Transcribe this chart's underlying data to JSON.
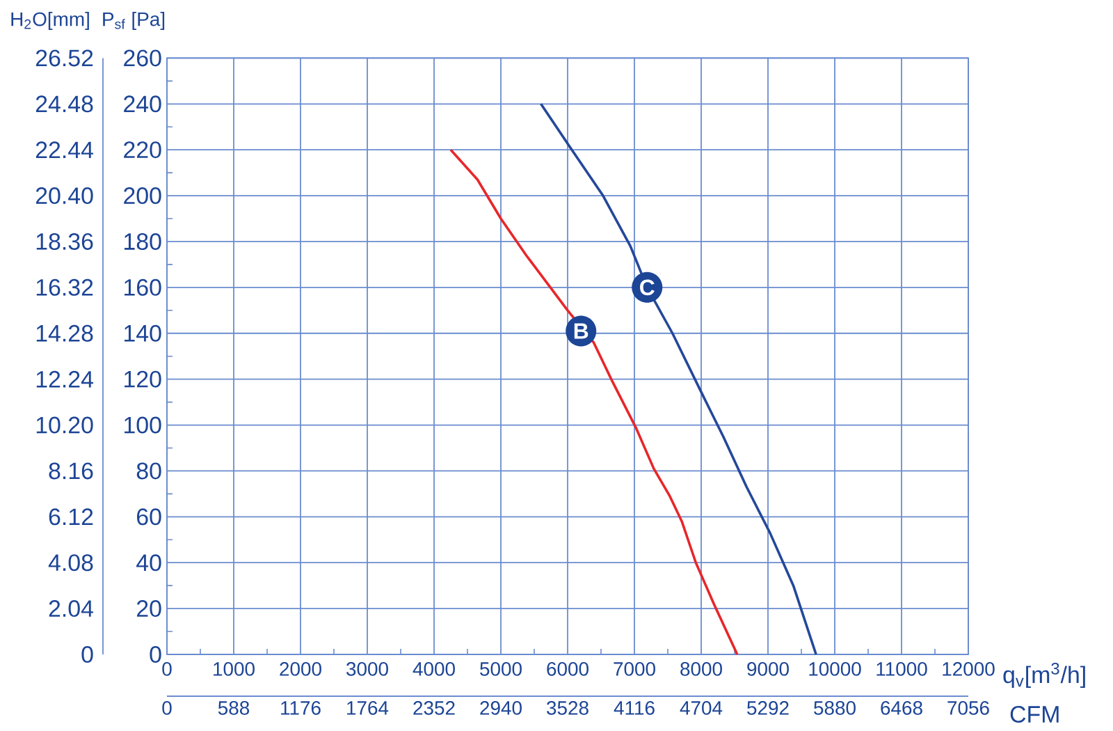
{
  "chart_data": {
    "type": "line",
    "xlabel": "q$_{v}$[m$^{3}$/h]",
    "x2label": "CFM",
    "ylabel": "P$_{sf}$ [Pa]",
    "y2label": "H$_{2}$O[mm]",
    "xlim": [
      0,
      12000
    ],
    "xticks": [
      0,
      1000,
      2000,
      3000,
      4000,
      5000,
      6000,
      7000,
      8000,
      9000,
      10000,
      11000,
      12000
    ],
    "x2lim": [
      0,
      7056
    ],
    "x2ticks": [
      0,
      588,
      1176,
      1764,
      2352,
      2940,
      3528,
      4116,
      4704,
      5292,
      5880,
      6468,
      7056
    ],
    "ylim": [
      0,
      260
    ],
    "yticks": [
      0,
      20,
      40,
      60,
      80,
      100,
      120,
      140,
      160,
      180,
      200,
      220,
      240,
      260
    ],
    "y2lim": [
      0,
      26.52
    ],
    "y2ticks": [
      0,
      2.04,
      4.08,
      6.12,
      8.16,
      {
        "value": 10.2,
        "label": "10.20"
      },
      12.24,
      14.28,
      16.32,
      18.36,
      {
        "value": 20.4,
        "label": "20.40"
      },
      22.44,
      24.48,
      26.52
    ],
    "grid": true,
    "marker": "none",
    "line_style": "solid",
    "series": [
      {
        "color": "#e8262a",
        "x": [
          4250,
          4650,
          5000,
          5380,
          6000,
          6390,
          6670,
          7020,
          7290,
          7530,
          7710,
          7920,
          8190,
          8540
        ],
        "values": [
          220,
          207,
          190,
          174,
          150,
          136,
          119,
          99,
          81,
          69,
          58,
          40,
          22,
          0
        ]
      },
      {
        "color": "#24489a",
        "x": [
          5600,
          6040,
          6530,
          6940,
          7190,
          7570,
          7990,
          8330,
          8680,
          9030,
          9380,
          9720
        ],
        "values": [
          240,
          221,
          200,
          178,
          160,
          140,
          115,
          95,
          73,
          53,
          30,
          0
        ]
      }
    ],
    "annotations": [
      {
        "text": "B",
        "x": 6200,
        "y": 141
      },
      {
        "text": "C",
        "x": 7190,
        "y": 160
      }
    ]
  }
}
